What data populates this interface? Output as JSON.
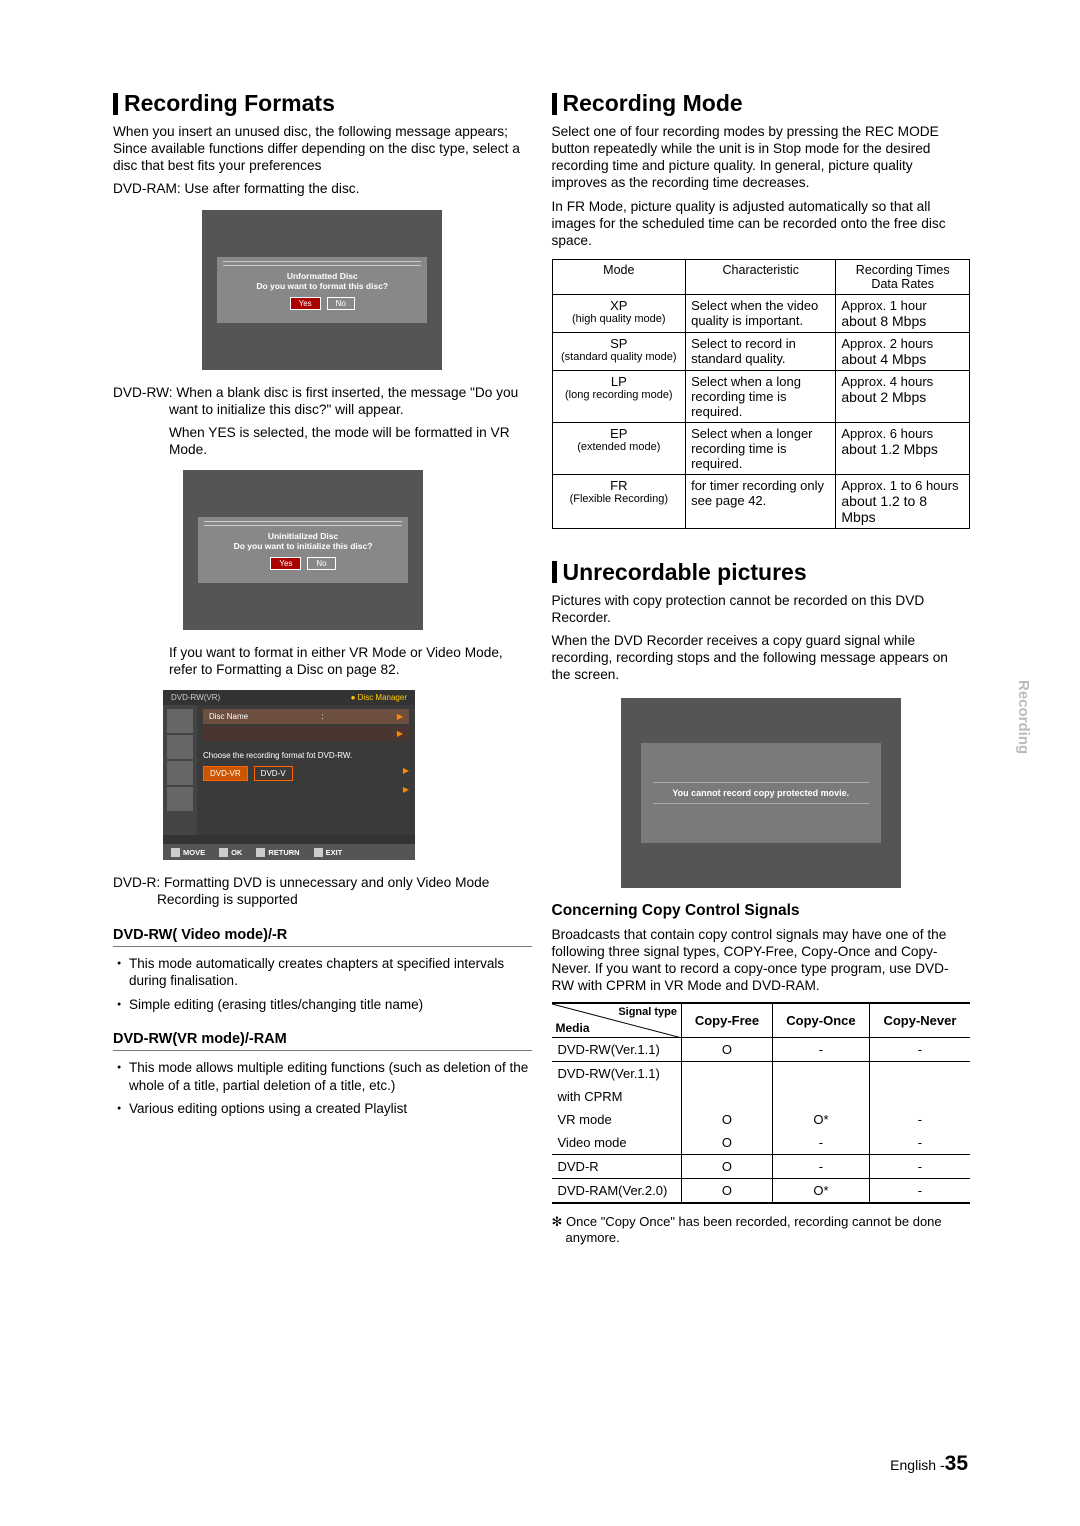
{
  "left": {
    "h_formats": "Recording Formats",
    "formats_intro": "When you insert an unused disc, the following message appears; Since available functions differ depending on the disc type, select a disc that best fits your preferences",
    "dvdram": "DVD-RAM: Use after formatting the disc.",
    "screen1": {
      "line1": "Unformatted Disc",
      "line2": "Do you want to format this disc?",
      "yes": "Yes",
      "no": "No"
    },
    "dvdrw_intro": "DVD-RW: When a blank disc is first inserted, the message \"Do you want to initialize this disc?\" will appear.",
    "dvdrw_yes": "When YES is selected, the mode will be formatted in VR Mode.",
    "screen2": {
      "line1": "Uninitialized Disc",
      "line2": "Do you want to initialize this disc?",
      "yes": "Yes",
      "no": "No"
    },
    "vr_video_note": "If you want to format in either VR Mode or Video Mode, refer to Formatting a Disc on page 82.",
    "dm": {
      "topleft": "DVD-RW(VR)",
      "topright": "Disc Manager",
      "row1": "Disc Name",
      "msg": "Choose the recording format fot DVD-RW.",
      "opt1": "DVD-VR",
      "opt2": "DVD-V",
      "move": "MOVE",
      "ok": "OK",
      "return": "RETURN",
      "exit": "EXIT"
    },
    "dvdr": "DVD-R: Formatting DVD is unnecessary and only Video Mode Recording is supported",
    "h_video": "DVD-RW( Video mode)/-R",
    "video_b1": "This mode automatically creates chapters at specified intervals during finalisation.",
    "video_b2": "Simple editing (erasing titles/changing title name)",
    "h_vr": "DVD-RW(VR mode)/-RAM",
    "vr_b1": "This mode allows multiple editing functions (such as deletion of the whole of a title, partial deletion of a title, etc.)",
    "vr_b2": "Various editing options using a created Playlist"
  },
  "right": {
    "h_mode": "Recording Mode",
    "mode_intro": "Select one of four recording modes by pressing the REC MODE button repeatedly while the unit is in Stop mode for the desired recording time and picture quality. In general, picture quality improves as the recording time decreases.",
    "mode_fr": "In FR Mode, picture quality is adjusted automatically so that all images for the scheduled time can be recorded onto the free disc space.",
    "table": {
      "h_mode": "Mode",
      "h_char": "Characteristic",
      "h_rt": "Recording Times Data Rates",
      "rows": [
        {
          "m": "XP",
          "ms": "(high quality mode)",
          "c": "Select when the video quality is important.",
          "t": "Approx. 1 hour",
          "b": "about 8 Mbps"
        },
        {
          "m": "SP",
          "ms": "(standard quality mode)",
          "c": "Select to record in standard quality.",
          "t": "Approx. 2 hours",
          "b": "about 4 Mbps"
        },
        {
          "m": "LP",
          "ms": "(long recording mode)",
          "c": "Select when a long recording time is required.",
          "t": "Approx. 4 hours",
          "b": "about 2 Mbps"
        },
        {
          "m": "EP",
          "ms": "(extended mode)",
          "c": "Select when a longer recording time is required.",
          "t": "Approx. 6 hours",
          "b": "about 1.2 Mbps"
        },
        {
          "m": "FR",
          "ms": "(Flexible Recording)",
          "c": "for timer recording only see page 42.",
          "t": "Approx. 1 to 6 hours",
          "b": "about 1.2 to 8 Mbps"
        }
      ]
    },
    "h_unrec": "Unrecordable pictures",
    "unrec_p1": "Pictures with copy protection cannot be recorded on this DVD Recorder.",
    "unrec_p2": "When the DVD Recorder receives a copy guard signal while recording, recording stops and the following message appears on the screen.",
    "copy_msg": "You cannot record copy protected movie.",
    "h_signals": "Concerning Copy Control Signals",
    "signals_p": "Broadcasts that contain copy control signals may have one of the following three signal types, COPY-Free, Copy-Once and Copy-Never. If you want to record a copy-once type program, use DVD-RW with CPRM in VR Mode and DVD-RAM.",
    "sig_table": {
      "diag_top": "Signal type",
      "diag_bot": "Media",
      "c1": "Copy-Free",
      "c2": "Copy-Once",
      "c3": "Copy-Never",
      "rows": [
        {
          "m": "DVD-RW(Ver.1.1)",
          "a": "O",
          "b": "-",
          "c": "-",
          "bb": true
        },
        {
          "m": "DVD-RW(Ver.1.1)",
          "a": "",
          "b": "",
          "c": "",
          "bb": false
        },
        {
          "m": "with CPRM",
          "a": "",
          "b": "",
          "c": "",
          "bb": false
        },
        {
          "m": "VR mode",
          "a": "O",
          "b": "O*",
          "c": "-",
          "bb": false
        },
        {
          "m": "Video mode",
          "a": "O",
          "b": "-",
          "c": "-",
          "bb": true
        },
        {
          "m": "DVD-R",
          "a": "O",
          "b": "-",
          "c": "-",
          "bb": true
        },
        {
          "m": "DVD-RAM(Ver.2.0)",
          "a": "O",
          "b": "O*",
          "c": "-",
          "bb": false
        }
      ]
    },
    "footnote": "✻ Once \"Copy Once\" has been recorded, recording cannot be done anymore."
  },
  "side": "Recording",
  "footer": {
    "lang": "English -",
    "page": "35"
  }
}
